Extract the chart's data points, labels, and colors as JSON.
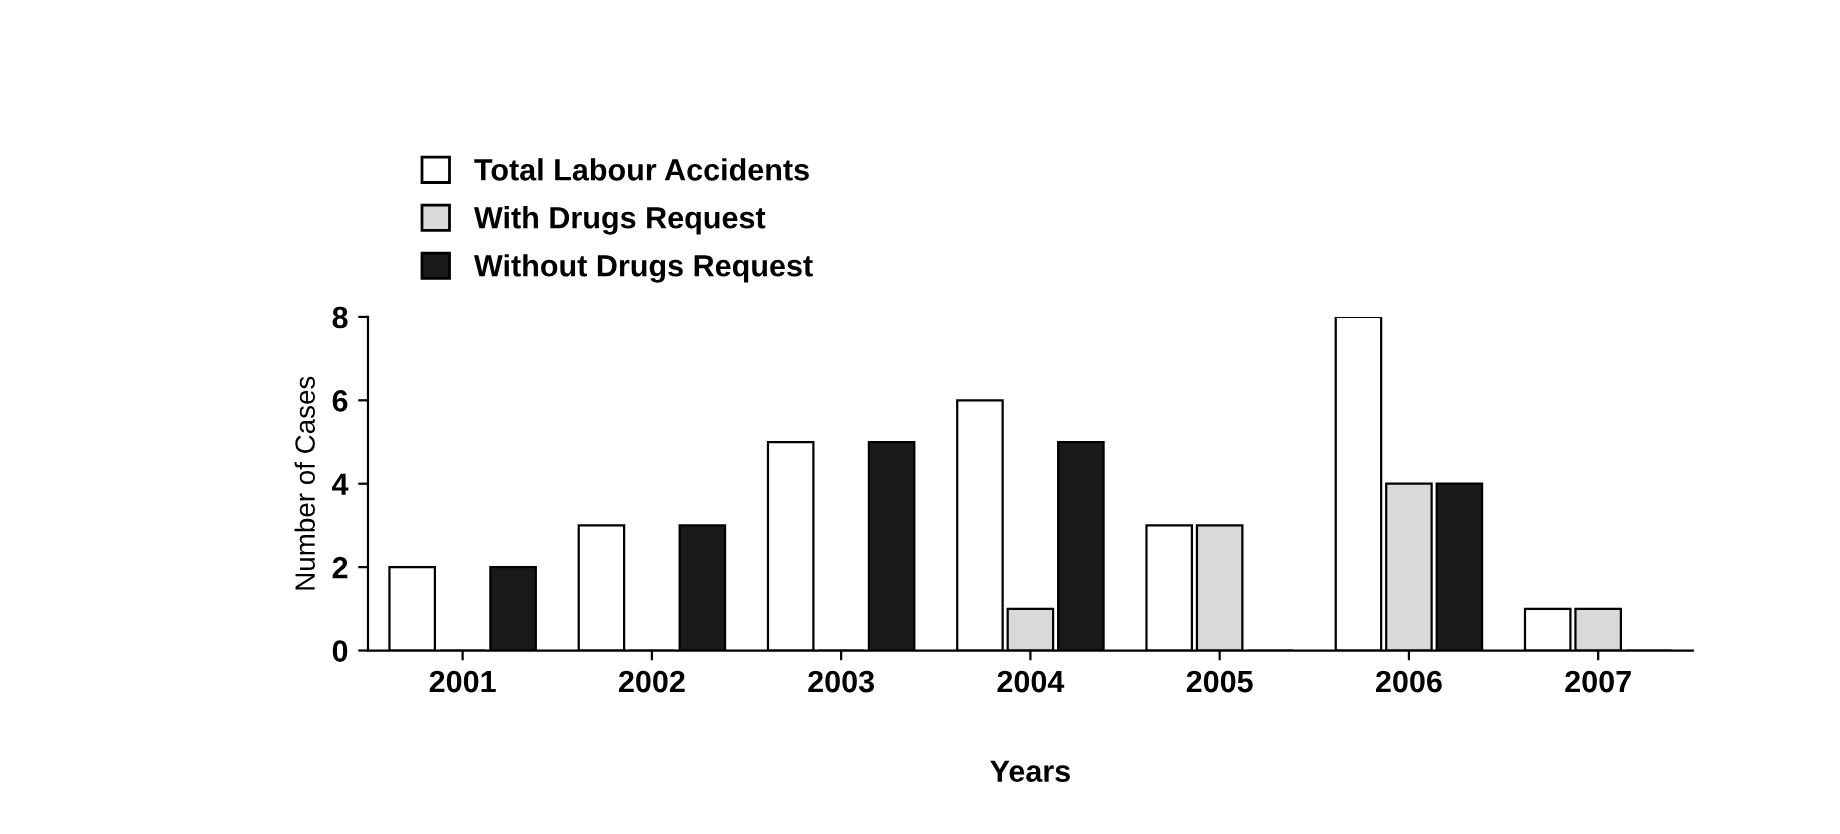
{
  "chart_data": {
    "type": "bar",
    "xlabel": "Years",
    "ylabel": "Number of Cases",
    "categories": [
      "2001",
      "2002",
      "2003",
      "2004",
      "2005",
      "2006",
      "2007"
    ],
    "series": [
      {
        "name": "Total Labour Accidents",
        "color": "#ffffff",
        "values": [
          2,
          3,
          5,
          6,
          3,
          8,
          1
        ]
      },
      {
        "name": "With Drugs Request",
        "color": "#d9d9d9",
        "values": [
          0,
          0,
          0,
          1,
          3,
          4,
          1
        ]
      },
      {
        "name": "Without Drugs Request",
        "color": "#1a1a1a",
        "values": [
          2,
          3,
          5,
          5,
          0,
          4,
          0
        ]
      }
    ],
    "ylim": [
      0,
      8
    ],
    "yticks": [
      0,
      2,
      4,
      6,
      8
    ],
    "grid": false,
    "legend": "top left"
  }
}
